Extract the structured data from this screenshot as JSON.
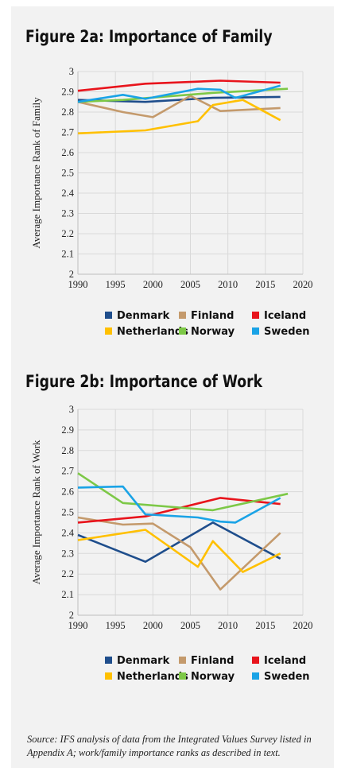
{
  "chart_data": [
    {
      "type": "line",
      "title": "Figure 2a: Importance of Family",
      "ylabel": "Average Importance Rank of Family",
      "xlabel": "",
      "xlim": [
        1990,
        2020
      ],
      "ylim": [
        2,
        3
      ],
      "xticks": [
        1990,
        1995,
        2000,
        2005,
        2010,
        2015,
        2020
      ],
      "yticks": [
        2,
        2.1,
        2.2,
        2.3,
        2.4,
        2.5,
        2.6,
        2.7,
        2.8,
        2.9,
        3
      ],
      "ytick_labels": [
        "2",
        "2.1",
        "2.2",
        "2.3",
        "2.4",
        "2.5",
        "2.6",
        "2.7",
        "2.8",
        "2.9",
        "3"
      ],
      "grid": true,
      "legend": "bottom",
      "series": [
        {
          "name": "Denmark",
          "color": "#1f4e8c",
          "x": [
            1990,
            1999,
            2008,
            2017
          ],
          "y": [
            2.86,
            2.85,
            2.87,
            2.875
          ]
        },
        {
          "name": "Finland",
          "color": "#c49a6c",
          "x": [
            1990,
            1996,
            2000,
            2005,
            2009,
            2017
          ],
          "y": [
            2.85,
            2.8,
            2.775,
            2.88,
            2.805,
            2.82
          ]
        },
        {
          "name": "Iceland",
          "color": "#e8141c",
          "x": [
            1990,
            1999,
            2009,
            2017
          ],
          "y": [
            2.905,
            2.94,
            2.955,
            2.945
          ]
        },
        {
          "name": "Netherlands",
          "color": "#ffc000",
          "x": [
            1990,
            1999,
            2006,
            2008,
            2012,
            2017
          ],
          "y": [
            2.695,
            2.71,
            2.755,
            2.835,
            2.86,
            2.76
          ]
        },
        {
          "name": "Norway",
          "color": "#7dc847",
          "x": [
            1990,
            1996,
            2008,
            2018
          ],
          "y": [
            2.85,
            2.86,
            2.895,
            2.915
          ]
        },
        {
          "name": "Sweden",
          "color": "#1aa3e6",
          "x": [
            1990,
            1996,
            1999,
            2006,
            2009,
            2011,
            2017
          ],
          "y": [
            2.85,
            2.885,
            2.865,
            2.915,
            2.91,
            2.87,
            2.93
          ]
        }
      ]
    },
    {
      "type": "line",
      "title": "Figure 2b: Importance of Work",
      "ylabel": "Average Importance Rank of Work",
      "xlabel": "",
      "xlim": [
        1990,
        2020
      ],
      "ylim": [
        2,
        3
      ],
      "xticks": [
        1990,
        1995,
        2000,
        2005,
        2010,
        2015,
        2020
      ],
      "yticks": [
        2,
        2.1,
        2.2,
        2.3,
        2.4,
        2.5,
        2.6,
        2.7,
        2.8,
        2.9,
        3
      ],
      "ytick_labels": [
        "2",
        "2.1",
        "2.2",
        "2.3",
        "2.4",
        "2.5",
        "2.6",
        "2.7",
        "2.8",
        "2.9",
        "3"
      ],
      "grid": true,
      "legend": "bottom",
      "series": [
        {
          "name": "Denmark",
          "color": "#1f4e8c",
          "x": [
            1990,
            1999,
            2008,
            2017
          ],
          "y": [
            2.39,
            2.26,
            2.45,
            2.275
          ]
        },
        {
          "name": "Finland",
          "color": "#c49a6c",
          "x": [
            1990,
            1996,
            2000,
            2005,
            2009,
            2017
          ],
          "y": [
            2.475,
            2.44,
            2.445,
            2.33,
            2.125,
            2.4
          ]
        },
        {
          "name": "Iceland",
          "color": "#e8141c",
          "x": [
            1990,
            1999,
            2009,
            2017
          ],
          "y": [
            2.45,
            2.48,
            2.57,
            2.54
          ]
        },
        {
          "name": "Netherlands",
          "color": "#ffc000",
          "x": [
            1990,
            1999,
            2006,
            2008,
            2012,
            2017
          ],
          "y": [
            2.365,
            2.415,
            2.235,
            2.36,
            2.21,
            2.3
          ]
        },
        {
          "name": "Norway",
          "color": "#7dc847",
          "x": [
            1990,
            1996,
            2008,
            2018
          ],
          "y": [
            2.69,
            2.545,
            2.51,
            2.59
          ]
        },
        {
          "name": "Sweden",
          "color": "#1aa3e6",
          "x": [
            1990,
            1996,
            1999,
            2006,
            2009,
            2011,
            2017
          ],
          "y": [
            2.62,
            2.625,
            2.49,
            2.475,
            2.455,
            2.45,
            2.57
          ]
        }
      ]
    }
  ],
  "source_note": "Source: IFS analysis of data from the Integrated Values Survey listed in Appendix A; work/family importance ranks as described in text."
}
